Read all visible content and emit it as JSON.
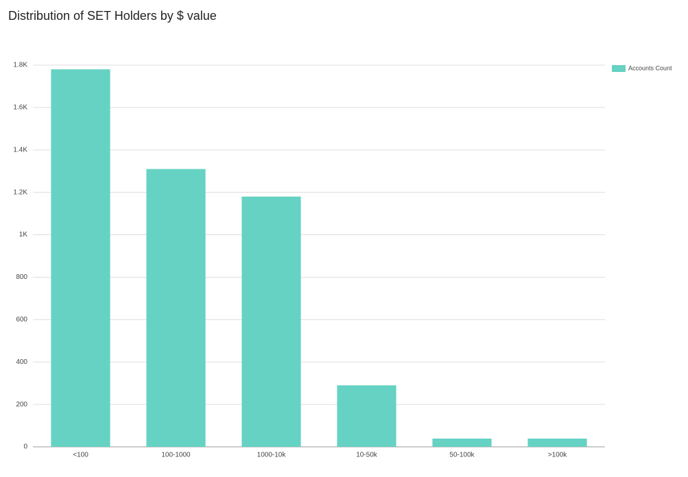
{
  "chart_data": {
    "type": "bar",
    "title": "Distribution of SET Holders by $ value",
    "categories": [
      "<100",
      "100-1000",
      "1000-10k",
      "10-50k",
      "50-100k",
      ">100k"
    ],
    "series": [
      {
        "name": "Accounts Count",
        "color": "#66d2c3",
        "values": [
          1780,
          1310,
          1180,
          290,
          39,
          39
        ]
      }
    ],
    "ylim": [
      0,
      1800
    ],
    "yticks": [
      0,
      200,
      400,
      600,
      800,
      {
        "value": 1000,
        "label": "1K"
      },
      {
        "value": 1200,
        "label": "1.2K"
      },
      {
        "value": 1400,
        "label": "1.4K"
      },
      {
        "value": 1600,
        "label": "1.6K"
      },
      {
        "value": 1800,
        "label": "1.8K"
      }
    ],
    "grid": true,
    "legend": "right"
  }
}
